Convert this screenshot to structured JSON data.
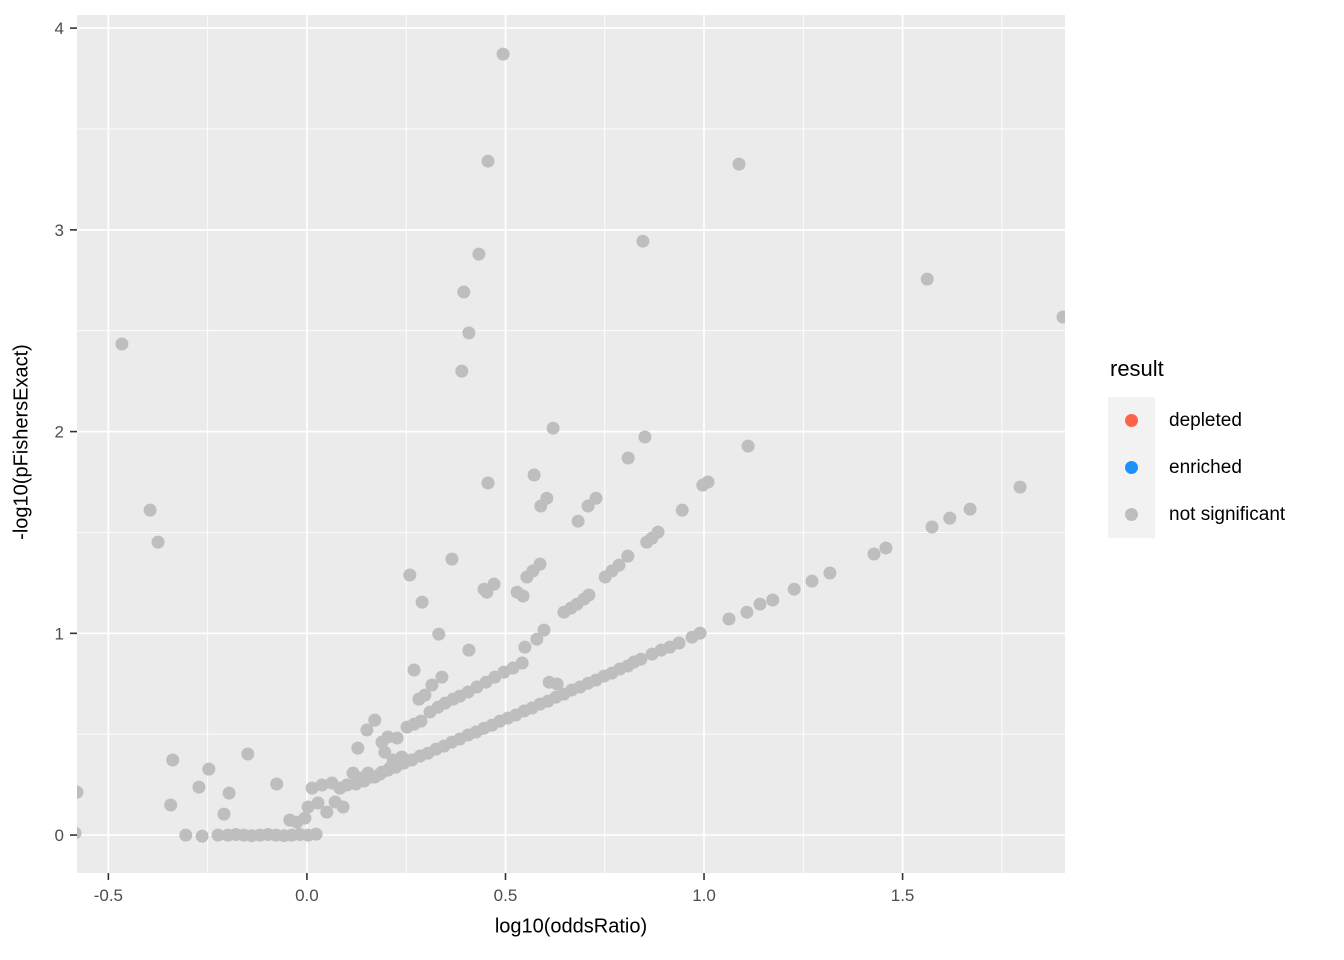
{
  "chart_data": {
    "type": "scatter",
    "title": "",
    "xlabel": "log10(oddsRatio)",
    "ylabel": "-log10(pFishersExact)",
    "xlim": [
      -0.579,
      1.909
    ],
    "ylim": [
      -0.188,
      4.065
    ],
    "x_ticks": [
      {
        "v": -0.5,
        "label": "-0.5"
      },
      {
        "v": 0.0,
        "label": "0.0"
      },
      {
        "v": 0.5,
        "label": "0.5"
      },
      {
        "v": 1.0,
        "label": "1.0"
      },
      {
        "v": 1.5,
        "label": "1.5"
      }
    ],
    "y_ticks": [
      {
        "v": 0,
        "label": "0"
      },
      {
        "v": 1,
        "label": "1"
      },
      {
        "v": 2,
        "label": "2"
      },
      {
        "v": 3,
        "label": "3"
      },
      {
        "v": 4,
        "label": "4"
      }
    ],
    "x_minor": [
      -0.25,
      0.25,
      0.75,
      1.25,
      1.75
    ],
    "y_minor": [
      0.5,
      1.5,
      2.5,
      3.5
    ],
    "grid": true,
    "panel_bg": "#EBEBEB",
    "grid_color": "#FFFFFF",
    "tick_label_color": "#4D4D4D",
    "tick_mark_color": "#333333",
    "legend": {
      "title": "result",
      "position": "right",
      "key_bg": "#F2F2F2",
      "entries": [
        {
          "label": "depleted",
          "color": "#FF6347"
        },
        {
          "label": "enriched",
          "color": "#1E90FF"
        },
        {
          "label": "not significant",
          "color": "#BEBEBE"
        }
      ]
    },
    "series": [
      {
        "name": "not significant",
        "color": "#BEBEBE",
        "point_radius": 6.5,
        "points": [
          [
            -0.584,
            0.01
          ],
          [
            -0.305,
            0.0
          ],
          [
            -0.264,
            -0.005
          ],
          [
            -0.224,
            0.0
          ],
          [
            -0.199,
            0.0
          ],
          [
            -0.179,
            0.003
          ],
          [
            -0.159,
            0.0
          ],
          [
            -0.139,
            -0.003
          ],
          [
            -0.118,
            0.0
          ],
          [
            -0.098,
            0.003
          ],
          [
            -0.078,
            0.0
          ],
          [
            -0.058,
            -0.003
          ],
          [
            -0.038,
            0.0
          ],
          [
            -0.018,
            0.003
          ],
          [
            0.003,
            0.0
          ],
          [
            0.023,
            0.005
          ],
          [
            -0.043,
            0.074
          ],
          [
            -0.025,
            0.064
          ],
          [
            -0.005,
            0.084
          ],
          [
            0.003,
            0.139
          ],
          [
            0.013,
            0.233
          ],
          [
            0.028,
            0.159
          ],
          [
            0.038,
            0.248
          ],
          [
            0.05,
            0.114
          ],
          [
            0.063,
            0.258
          ],
          [
            0.071,
            0.164
          ],
          [
            0.083,
            0.233
          ],
          [
            0.091,
            0.139
          ],
          [
            0.101,
            0.248
          ],
          [
            0.116,
            0.307
          ],
          [
            0.128,
            0.431
          ],
          [
            0.139,
            0.283
          ],
          [
            0.151,
            0.521
          ],
          [
            0.154,
            0.307
          ],
          [
            0.171,
            0.57
          ],
          [
            0.171,
            0.288
          ],
          [
            0.189,
            0.461
          ],
          [
            0.189,
            0.312
          ],
          [
            0.196,
            0.411
          ],
          [
            0.204,
            0.486
          ],
          [
            0.209,
            0.332
          ],
          [
            0.217,
            0.372
          ],
          [
            0.227,
            0.481
          ],
          [
            0.239,
            0.387
          ],
          [
            -0.579,
            0.213
          ],
          [
            -0.343,
            0.149
          ],
          [
            -0.338,
            0.372
          ],
          [
            -0.272,
            0.238
          ],
          [
            -0.247,
            0.327
          ],
          [
            -0.209,
            0.104
          ],
          [
            -0.196,
            0.208
          ],
          [
            -0.149,
            0.402
          ],
          [
            -0.076,
            0.253
          ],
          [
            -0.466,
            2.434
          ],
          [
            -0.395,
            1.611
          ],
          [
            -0.375,
            1.452
          ],
          [
            0.123,
            0.253
          ],
          [
            0.144,
            0.268
          ],
          [
            0.164,
            0.288
          ],
          [
            0.184,
            0.302
          ],
          [
            0.204,
            0.322
          ],
          [
            0.224,
            0.337
          ],
          [
            0.244,
            0.357
          ],
          [
            0.264,
            0.372
          ],
          [
            0.285,
            0.392
          ],
          [
            0.305,
            0.406
          ],
          [
            0.325,
            0.426
          ],
          [
            0.345,
            0.441
          ],
          [
            0.365,
            0.461
          ],
          [
            0.385,
            0.476
          ],
          [
            0.406,
            0.496
          ],
          [
            0.426,
            0.511
          ],
          [
            0.446,
            0.53
          ],
          [
            0.466,
            0.545
          ],
          [
            0.486,
            0.565
          ],
          [
            0.506,
            0.58
          ],
          [
            0.526,
            0.595
          ],
          [
            0.547,
            0.615
          ],
          [
            0.567,
            0.63
          ],
          [
            0.587,
            0.649
          ],
          [
            0.607,
            0.664
          ],
          [
            0.627,
            0.684
          ],
          [
            0.647,
            0.699
          ],
          [
            0.667,
            0.719
          ],
          [
            0.688,
            0.734
          ],
          [
            0.708,
            0.753
          ],
          [
            0.728,
            0.768
          ],
          [
            0.748,
            0.788
          ],
          [
            0.768,
            0.803
          ],
          [
            0.788,
            0.823
          ],
          [
            0.808,
            0.838
          ],
          [
            0.824,
            0.858
          ],
          [
            0.841,
            0.872
          ],
          [
            0.869,
            0.897
          ],
          [
            0.892,
            0.917
          ],
          [
            0.914,
            0.932
          ],
          [
            0.937,
            0.952
          ],
          [
            0.97,
            0.981
          ],
          [
            0.99,
            1.001
          ],
          [
            1.063,
            1.071
          ],
          [
            1.108,
            1.105
          ],
          [
            1.141,
            1.145
          ],
          [
            1.173,
            1.165
          ],
          [
            1.227,
            1.219
          ],
          [
            1.272,
            1.259
          ],
          [
            1.317,
            1.299
          ],
          [
            1.428,
            1.393
          ],
          [
            1.458,
            1.423
          ],
          [
            1.574,
            1.527
          ],
          [
            1.619,
            1.571
          ],
          [
            1.67,
            1.616
          ],
          [
            1.796,
            1.725
          ],
          [
            0.252,
            0.535
          ],
          [
            0.27,
            0.55
          ],
          [
            0.287,
            0.565
          ],
          [
            0.31,
            0.61
          ],
          [
            0.33,
            0.634
          ],
          [
            0.348,
            0.654
          ],
          [
            0.368,
            0.674
          ],
          [
            0.385,
            0.689
          ],
          [
            0.406,
            0.709
          ],
          [
            0.428,
            0.734
          ],
          [
            0.451,
            0.758
          ],
          [
            0.473,
            0.783
          ],
          [
            0.496,
            0.808
          ],
          [
            0.519,
            0.828
          ],
          [
            0.542,
            0.853
          ],
          [
            0.61,
            0.758
          ],
          [
            0.63,
            0.749
          ],
          [
            0.647,
            1.105
          ],
          [
            0.665,
            1.125
          ],
          [
            0.68,
            1.145
          ],
          [
            0.698,
            1.17
          ],
          [
            0.71,
            1.19
          ],
          [
            0.751,
            1.279
          ],
          [
            0.768,
            1.309
          ],
          [
            0.786,
            1.338
          ],
          [
            0.808,
            1.383
          ],
          [
            0.856,
            1.452
          ],
          [
            0.869,
            1.472
          ],
          [
            0.884,
            1.502
          ],
          [
            0.945,
            1.611
          ],
          [
            0.997,
            1.735
          ],
          [
            1.01,
            1.75
          ],
          [
            1.111,
            1.928
          ],
          [
            0.549,
            0.932
          ],
          [
            0.579,
            0.971
          ],
          [
            0.597,
            1.016
          ],
          [
            0.529,
            1.204
          ],
          [
            0.544,
            1.185
          ],
          [
            0.554,
            1.279
          ],
          [
            0.569,
            1.309
          ],
          [
            0.587,
            1.343
          ],
          [
            0.453,
            1.204
          ],
          [
            0.471,
            1.244
          ],
          [
            0.365,
            1.368
          ],
          [
            0.259,
            1.289
          ],
          [
            0.29,
            1.155
          ],
          [
            0.332,
            0.996
          ],
          [
            0.408,
            0.917
          ],
          [
            0.446,
            1.219
          ],
          [
            0.27,
            0.818
          ],
          [
            0.282,
            0.674
          ],
          [
            0.297,
            0.694
          ],
          [
            0.315,
            0.744
          ],
          [
            0.34,
            0.783
          ],
          [
            0.572,
            1.785
          ],
          [
            0.589,
            1.631
          ],
          [
            0.604,
            1.67
          ],
          [
            0.708,
            1.631
          ],
          [
            0.728,
            1.67
          ],
          [
            0.683,
            1.556
          ],
          [
            0.456,
            1.745
          ],
          [
            0.62,
            2.017
          ],
          [
            0.851,
            1.973
          ],
          [
            0.809,
            1.869
          ],
          [
            0.39,
            2.3
          ],
          [
            0.395,
            2.692
          ],
          [
            0.408,
            2.489
          ],
          [
            0.433,
            2.88
          ],
          [
            0.456,
            3.341
          ],
          [
            0.494,
            3.871
          ],
          [
            0.846,
            2.944
          ],
          [
            1.088,
            3.326
          ],
          [
            1.562,
            2.756
          ],
          [
            1.904,
            2.568
          ]
        ]
      }
    ]
  }
}
